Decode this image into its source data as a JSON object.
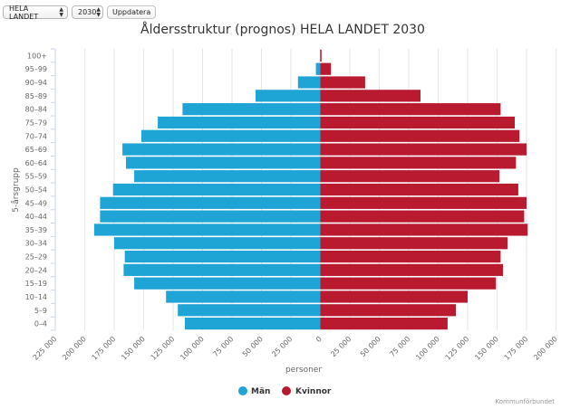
{
  "controls": {
    "region_select": "HELA LANDET",
    "year_select": "2030",
    "update_button": "Uppdatera"
  },
  "colors": {
    "men": "#1fa4d6",
    "women": "#b91a30",
    "grid": "#e6e6e6"
  },
  "chart_data": {
    "type": "bar",
    "orientation": "horizontal-population-pyramid",
    "title": "Åldersstruktur (prognos) HELA LANDET 2030",
    "xlabel": "personer",
    "ylabel": "5-årsgrupp",
    "xlim": [
      -225000,
      200000
    ],
    "x_ticks": [
      -225000,
      -200000,
      -175000,
      -150000,
      -125000,
      -100000,
      -75000,
      -50000,
      -25000,
      0,
      25000,
      50000,
      75000,
      100000,
      125000,
      150000,
      175000,
      200000
    ],
    "x_tick_labels": [
      "225 000",
      "200 000",
      "175 000",
      "150 000",
      "125 000",
      "100 000",
      "75 000",
      "50 000",
      "25 000",
      "0",
      "25 000",
      "50 000",
      "75 000",
      "100 000",
      "125 000",
      "150 000",
      "175 000",
      "200 000"
    ],
    "grid": true,
    "legend_position": "bottom-center",
    "categories": [
      "100+",
      "95-99",
      "90-94",
      "85-89",
      "80-84",
      "75-79",
      "70-74",
      "65-69",
      "60-64",
      "55-59",
      "50-54",
      "45-49",
      "40-44",
      "35-39",
      "30-34",
      "25-29",
      "20-24",
      "15-19",
      "10-14",
      "5-9",
      "0-4"
    ],
    "series": [
      {
        "name": "Män",
        "side": "left",
        "values": [
          300,
          3800,
          19000,
          55000,
          117000,
          138000,
          152000,
          168000,
          165000,
          158000,
          176000,
          187000,
          187000,
          192000,
          175000,
          166000,
          167000,
          158000,
          131000,
          121000,
          115000
        ]
      },
      {
        "name": "Kvinnor",
        "side": "right",
        "values": [
          1000,
          9000,
          38000,
          85000,
          153000,
          165000,
          169000,
          175000,
          166000,
          152000,
          168000,
          175000,
          173000,
          176000,
          159000,
          153000,
          155000,
          149000,
          125000,
          115000,
          108000
        ]
      }
    ],
    "credits": "Kommunförbundet"
  }
}
